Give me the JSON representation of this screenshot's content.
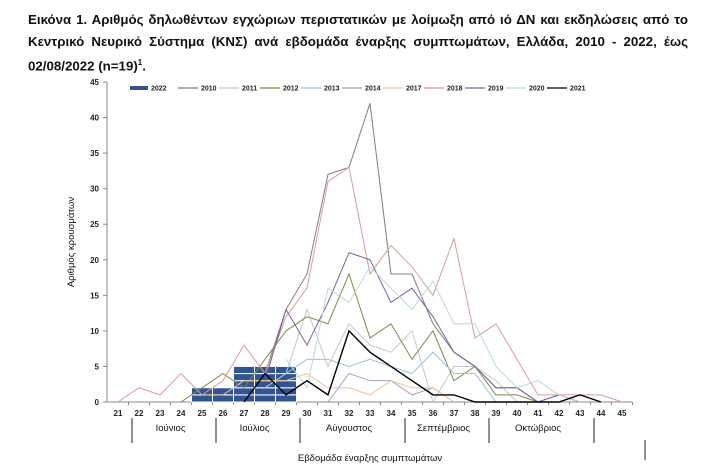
{
  "title": {
    "text": "Εικόνα 1. Αριθμός δηλωθέντων εγχώριων περιστατικών με λοίμωξη από ιό ΔΝ και εκδηλώσεις από το Κεντρικό Νευρικό Σύστημα (ΚΝΣ) ανά εβδομάδα έναρξης συμπτωμάτων, Ελλάδα, 2010 - 2022, έως 02/08/2022 (n=19)",
    "superscript": "1",
    "end": "."
  },
  "chart_data": {
    "type": "bar+line",
    "xlabel": "Εβδομάδα έναρξης συμπτωμάτων",
    "ylabel": "Αριθμός κρουσμάτων",
    "ylim": [
      0,
      45
    ],
    "yticks": [
      0,
      5,
      10,
      15,
      20,
      25,
      30,
      35,
      40,
      45
    ],
    "x": [
      21,
      22,
      23,
      24,
      25,
      26,
      27,
      28,
      29,
      30,
      31,
      32,
      33,
      34,
      35,
      36,
      37,
      38,
      39,
      40,
      41,
      42,
      43,
      44,
      45
    ],
    "grid": false,
    "legend": "top",
    "months": [
      {
        "label": "Ιούνιος",
        "from": 22,
        "to": 26
      },
      {
        "label": "Ιούλιος",
        "from": 26,
        "to": 30
      },
      {
        "label": "Αύγουστος",
        "from": 30,
        "to": 35
      },
      {
        "label": "Σεπτέμβριος",
        "from": 35,
        "to": 39
      },
      {
        "label": "Οκτώβριος",
        "from": 39,
        "to": 44
      }
    ],
    "bars": {
      "name": "2022",
      "color": "#2f5597",
      "values": {
        "25": 2,
        "26": 2,
        "27": 5,
        "28": 5,
        "29": 5
      }
    },
    "series": [
      {
        "name": "2010",
        "color": "#7f7f7f",
        "points": {
          "28": 4,
          "29": 13,
          "30": 18,
          "31": 32,
          "32": 33,
          "33": 42,
          "34": 18,
          "35": 18,
          "36": 11,
          "37": 7,
          "38": 5,
          "39": 2,
          "40": 2,
          "41": 0,
          "42": 1,
          "43": 0
        }
      },
      {
        "name": "2011",
        "color": "#c8c8c8",
        "points": {
          "28": 2,
          "29": 4,
          "30": 13,
          "31": 5,
          "32": 11,
          "33": 8,
          "34": 7,
          "35": 10,
          "36": 0,
          "37": 5,
          "38": 5,
          "39": 3,
          "40": 0
        }
      },
      {
        "name": "2012",
        "color": "#7a8c3c",
        "points": {
          "24": 0,
          "25": 2,
          "26": 4,
          "27": 2,
          "28": 6,
          "29": 10,
          "30": 12,
          "31": 11,
          "32": 18,
          "33": 9,
          "34": 11,
          "35": 6,
          "36": 10,
          "37": 3,
          "38": 5,
          "39": 1,
          "40": 1,
          "41": 0
        }
      },
      {
        "name": "2013",
        "color": "#8fc4dc",
        "points": {
          "29": 4,
          "30": 6,
          "31": 6,
          "32": 5,
          "33": 6,
          "34": 5,
          "35": 4,
          "36": 7,
          "37": 4,
          "38": 4,
          "39": 0
        }
      },
      {
        "name": "2014",
        "color": "#a99cc8",
        "points": {
          "31": 0,
          "32": 4,
          "33": 3,
          "34": 3,
          "35": 1,
          "36": 2,
          "37": 0
        }
      },
      {
        "name": "2017",
        "color": "#f5c28e",
        "points": {
          "25": 1,
          "26": 1,
          "27": 3,
          "28": 3,
          "29": 3,
          "30": 4,
          "31": 2,
          "32": 2,
          "33": 1,
          "34": 3,
          "35": 2,
          "36": 2,
          "37": 0
        }
      },
      {
        "name": "2018",
        "color": "#dc9a9a",
        "points": {
          "21": 0,
          "22": 2,
          "23": 1,
          "24": 4,
          "25": 1,
          "26": 3,
          "27": 8,
          "28": 4,
          "29": 12,
          "30": 16,
          "31": 31,
          "32": 33,
          "33": 18,
          "34": 22,
          "35": 19,
          "36": 15,
          "37": 23,
          "38": 9,
          "39": 11,
          "40": 6,
          "41": 1,
          "42": 1,
          "43": 1,
          "44": 1,
          "45": 0
        }
      },
      {
        "name": "2019",
        "color": "#7a5fa8",
        "points": {
          "28": 3,
          "29": 13,
          "30": 8,
          "31": 14,
          "32": 21,
          "33": 20,
          "34": 14,
          "35": 16,
          "36": 12,
          "37": 7,
          "38": 5,
          "39": 2,
          "40": 2,
          "41": 0,
          "42": 1,
          "43": 0
        }
      },
      {
        "name": "2020",
        "color": "#b5dcd2",
        "points": {
          "29": 6,
          "30": 2,
          "31": 16,
          "32": 14,
          "33": 19,
          "34": 16,
          "35": 13,
          "36": 17,
          "37": 11,
          "38": 11,
          "39": 5,
          "40": 2,
          "41": 3,
          "42": 1,
          "43": 0
        }
      },
      {
        "name": "2021",
        "color": "#000000",
        "points": {
          "27": 0,
          "28": 4,
          "29": 1,
          "30": 3,
          "31": 1,
          "32": 10,
          "33": 7,
          "34": 5,
          "35": 3,
          "36": 1,
          "37": 1,
          "38": 0,
          "39": 0,
          "40": 0,
          "41": 0,
          "42": 0,
          "43": 1,
          "44": 0
        }
      }
    ]
  }
}
